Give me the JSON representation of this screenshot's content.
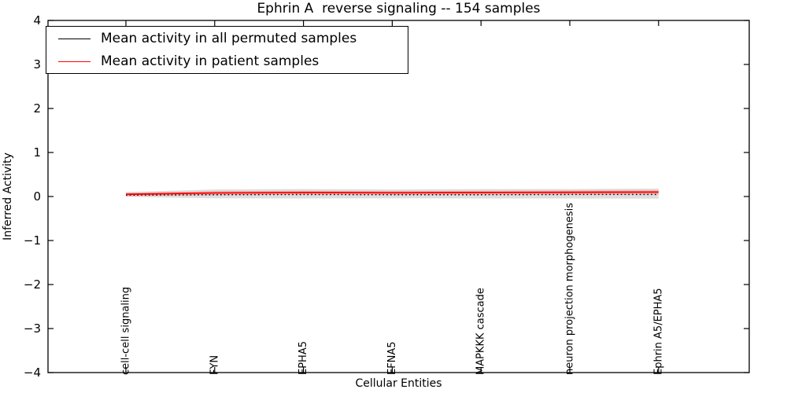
{
  "chart_data": {
    "type": "line",
    "title": "Ephrin A  reverse signaling -- 154 samples",
    "xlabel": "Cellular Entities",
    "ylabel": "Inferred Activity",
    "ylim": [
      -4,
      4
    ],
    "grid": false,
    "legend_position": "upper left",
    "y_ticks": [
      {
        "value": 4,
        "label": "4"
      },
      {
        "value": 3,
        "label": "3"
      },
      {
        "value": 2,
        "label": "2"
      },
      {
        "value": 1,
        "label": "1"
      },
      {
        "value": 0,
        "label": "0"
      },
      {
        "value": -1,
        "label": "−1"
      },
      {
        "value": -2,
        "label": "−2"
      },
      {
        "value": -3,
        "label": "−3"
      },
      {
        "value": -4,
        "label": "−4"
      }
    ],
    "categories": [
      "cell-cell signaling",
      "FYN",
      "EPHA5",
      "EFNA5",
      "MAPKKK cascade",
      "neuron projection morphogenesis",
      "Ephrin A5/EPHA5"
    ],
    "series": [
      {
        "name": "Mean activity in all permuted samples",
        "color": "#000000",
        "style": "dotted",
        "width": 1.4,
        "values": [
          0.03,
          0.04,
          0.045,
          0.04,
          0.04,
          0.045,
          0.045
        ]
      },
      {
        "name": "Mean activity in patient samples",
        "color": "#ff0000",
        "style": "solid",
        "width": 1.8,
        "values": [
          0.05,
          0.08,
          0.09,
          0.085,
          0.09,
          0.095,
          0.1
        ]
      }
    ],
    "bands": [
      {
        "name": "permuted-samples-std-band",
        "color": "#999999",
        "opacity": 0.32,
        "hi": [
          0.1,
          0.16,
          0.17,
          0.16,
          0.17,
          0.17,
          0.18
        ],
        "lo": [
          -0.01,
          -0.04,
          -0.045,
          -0.04,
          -0.045,
          -0.045,
          -0.05
        ]
      },
      {
        "name": "patient-samples-std-band",
        "color": "#ff4444",
        "opacity": 0.3,
        "hi": [
          0.08,
          0.12,
          0.13,
          0.125,
          0.13,
          0.135,
          0.14
        ],
        "lo": [
          0.01,
          0.03,
          0.04,
          0.035,
          0.04,
          0.04,
          0.045
        ]
      }
    ]
  }
}
